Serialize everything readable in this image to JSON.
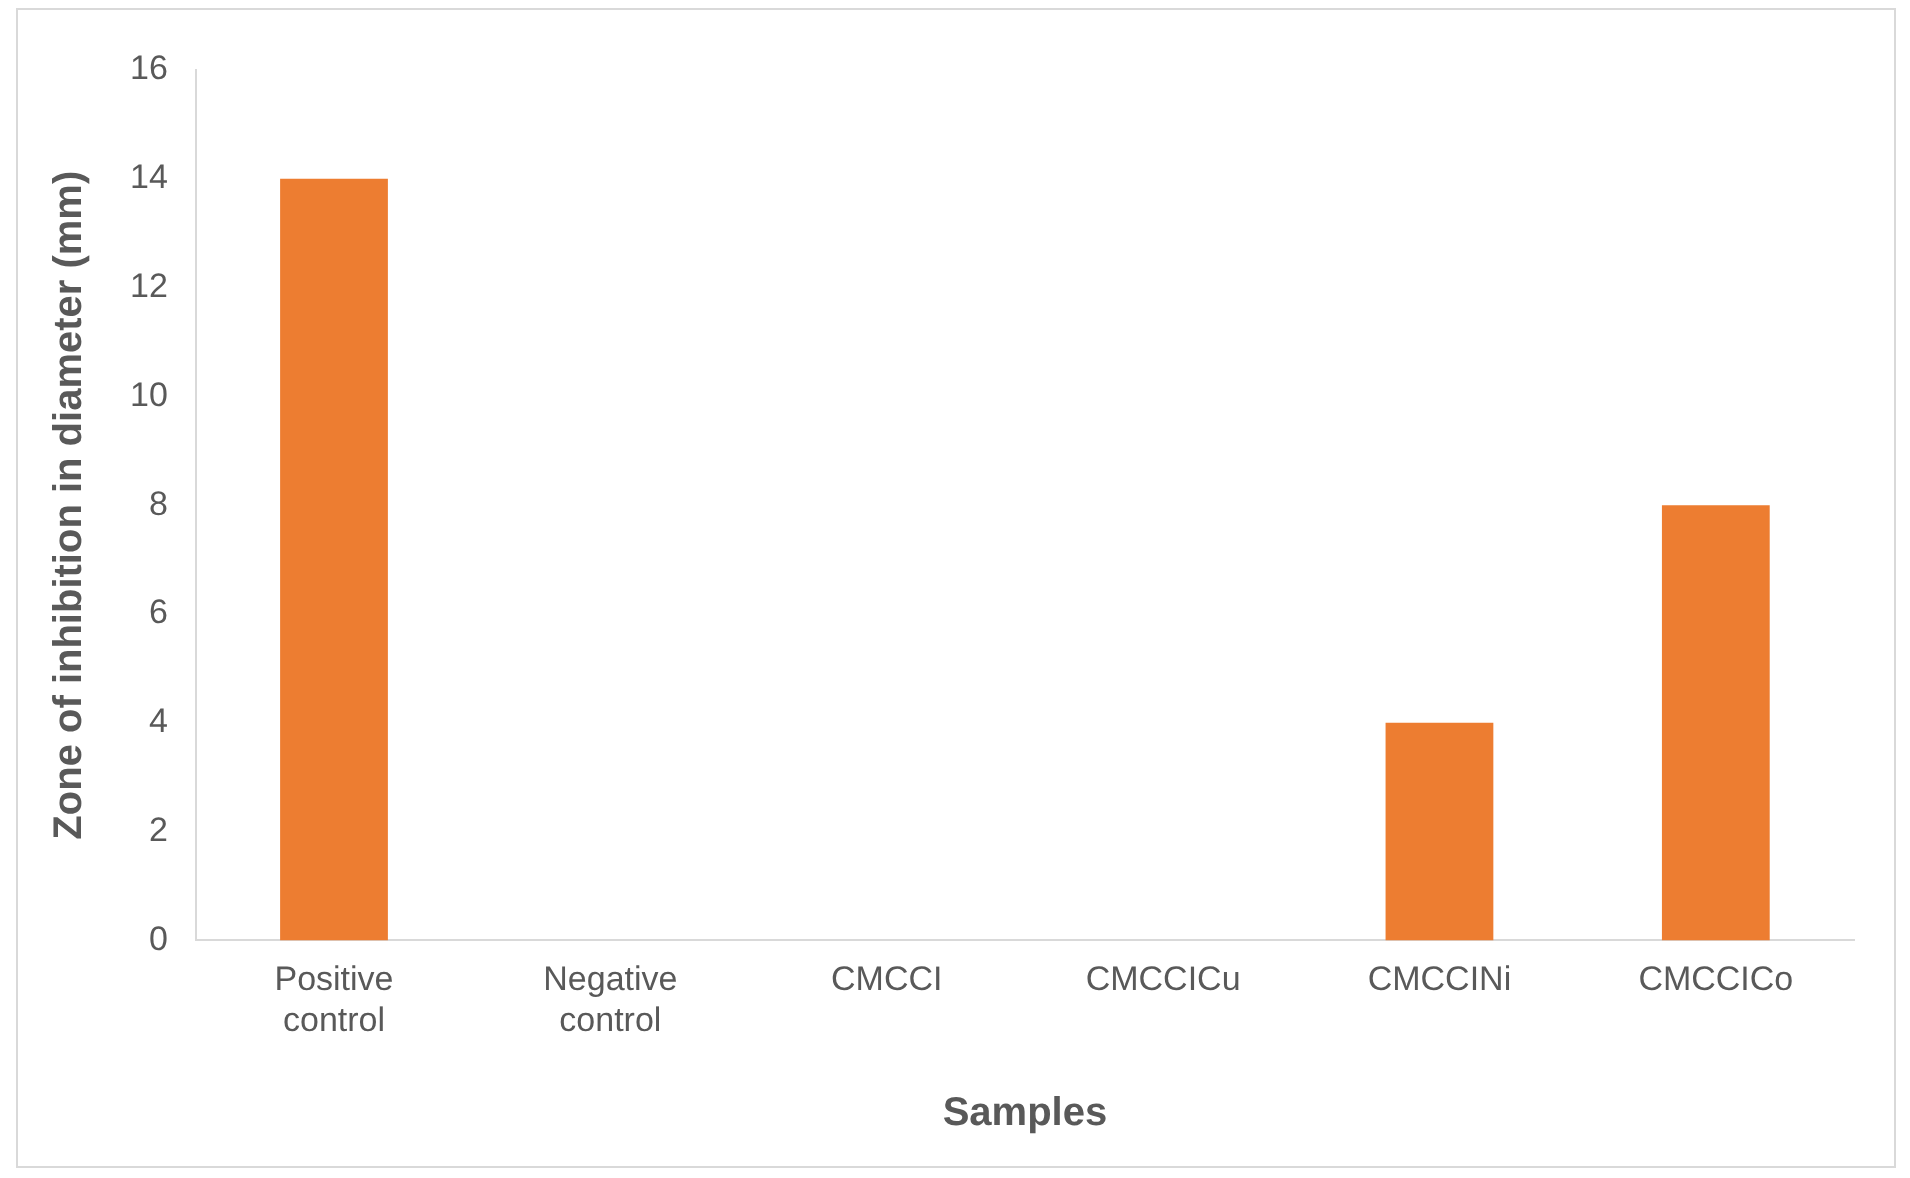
{
  "chart_data": {
    "type": "bar",
    "xlabel": "Samples",
    "ylabel": "Zone of inhibition in diameter (mm)",
    "categories": [
      "Positive control",
      "Negative control",
      "CMCCI",
      "CMCCICu",
      "CMCCINi",
      "CMCCICo"
    ],
    "values": [
      14,
      0,
      0,
      0,
      4,
      8
    ],
    "color": "#ed7d31",
    "ylim": [
      0,
      16
    ],
    "yticks": [
      0,
      2,
      4,
      6,
      8,
      10,
      12,
      14,
      16
    ],
    "grid": false,
    "legend": false
  }
}
